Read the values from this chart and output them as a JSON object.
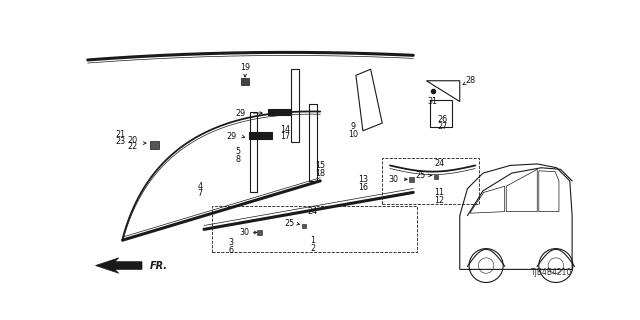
{
  "bg_color": "#ffffff",
  "part_number": "TJB4B4210",
  "line_color": "#1a1a1a"
}
